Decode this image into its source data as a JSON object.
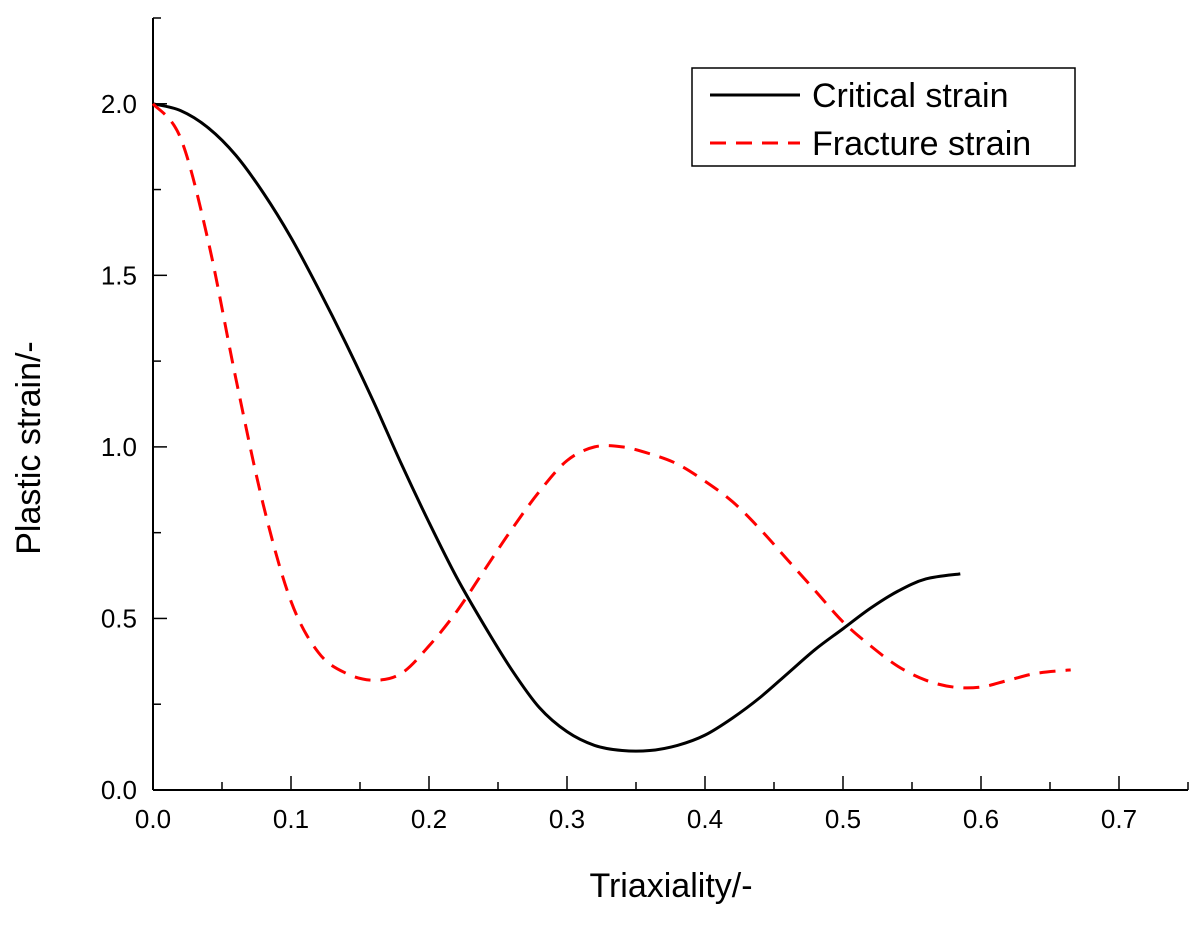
{
  "chart_data": {
    "type": "line",
    "xlabel": "Triaxiality/-",
    "ylabel": "Plastic strain/-",
    "xlim": [
      0,
      0.75
    ],
    "ylim": [
      0,
      2.25
    ],
    "xticks": [
      "0.0",
      "0.1",
      "0.2",
      "0.3",
      "0.4",
      "0.5",
      "0.6",
      "0.7"
    ],
    "yticks": [
      "0.0",
      "0.5",
      "1.0",
      "1.5",
      "2.0"
    ],
    "grid": false,
    "legend_position": "top-right",
    "series": [
      {
        "name": "Critical strain",
        "style": "solid",
        "color": "#000000",
        "x": [
          0.0,
          0.02,
          0.04,
          0.06,
          0.08,
          0.1,
          0.12,
          0.14,
          0.16,
          0.18,
          0.2,
          0.22,
          0.24,
          0.26,
          0.28,
          0.3,
          0.32,
          0.34,
          0.36,
          0.38,
          0.4,
          0.42,
          0.44,
          0.46,
          0.48,
          0.5,
          0.52,
          0.54,
          0.56,
          0.585
        ],
        "y": [
          2.0,
          1.98,
          1.93,
          1.85,
          1.74,
          1.61,
          1.46,
          1.3,
          1.13,
          0.95,
          0.78,
          0.62,
          0.48,
          0.35,
          0.24,
          0.17,
          0.13,
          0.115,
          0.115,
          0.13,
          0.16,
          0.21,
          0.27,
          0.34,
          0.41,
          0.47,
          0.53,
          0.58,
          0.615,
          0.63
        ]
      },
      {
        "name": "Fracture strain",
        "style": "dashed",
        "color": "#ff0000",
        "x": [
          0.0,
          0.02,
          0.04,
          0.06,
          0.08,
          0.1,
          0.12,
          0.14,
          0.16,
          0.18,
          0.2,
          0.22,
          0.24,
          0.26,
          0.28,
          0.3,
          0.32,
          0.34,
          0.36,
          0.38,
          0.4,
          0.42,
          0.44,
          0.46,
          0.48,
          0.5,
          0.52,
          0.54,
          0.56,
          0.58,
          0.6,
          0.62,
          0.64,
          0.665
        ],
        "y": [
          2.0,
          1.9,
          1.6,
          1.2,
          0.83,
          0.55,
          0.4,
          0.34,
          0.32,
          0.34,
          0.42,
          0.52,
          0.64,
          0.76,
          0.87,
          0.96,
          1.0,
          1.0,
          0.98,
          0.95,
          0.9,
          0.84,
          0.76,
          0.67,
          0.58,
          0.49,
          0.42,
          0.36,
          0.32,
          0.3,
          0.3,
          0.32,
          0.34,
          0.35
        ]
      }
    ]
  }
}
